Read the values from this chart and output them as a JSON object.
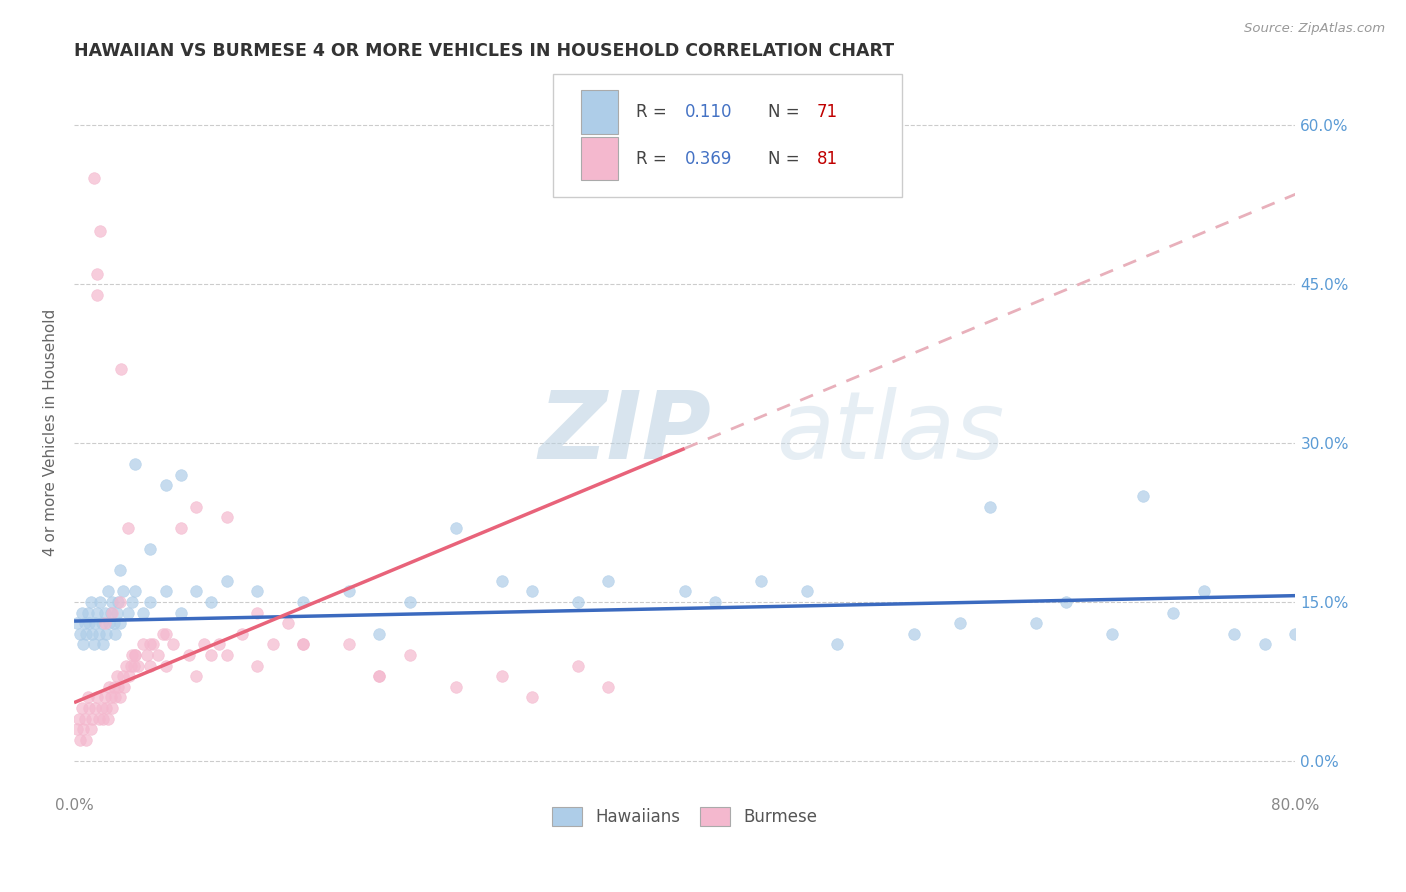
{
  "title": "HAWAIIAN VS BURMESE 4 OR MORE VEHICLES IN HOUSEHOLD CORRELATION CHART",
  "source": "Source: ZipAtlas.com",
  "ylabel": "4 or more Vehicles in Household",
  "ytick_vals": [
    0.0,
    15.0,
    30.0,
    45.0,
    60.0
  ],
  "ytick_labels": [
    "0.0%",
    "15.0%",
    "30.0%",
    "45.0%",
    "60.0%"
  ],
  "xlim": [
    0.0,
    80.0
  ],
  "ylim": [
    -3.0,
    65.0
  ],
  "watermark_zip": "ZIP",
  "watermark_atlas": "atlas",
  "hawaiian_R": "0.110",
  "hawaiian_N": "71",
  "burmese_R": "0.369",
  "burmese_N": "81",
  "hawaiian_color": "#aecde8",
  "burmese_color": "#f4b8ce",
  "hawaiian_line_color": "#3b6abf",
  "burmese_line_color": "#e8637a",
  "burmese_line_dash_color": "#e8b0bb",
  "background_color": "#ffffff",
  "grid_color": "#cccccc",
  "title_color": "#333333",
  "ytick_color": "#5b9bd5",
  "xtick_color": "#888888",
  "legend_R_color": "#4472c4",
  "legend_N_color": "#c00000",
  "legend_text_color": "#444444",
  "hawaiian_x": [
    0.2,
    0.4,
    0.5,
    0.6,
    0.7,
    0.8,
    0.9,
    1.0,
    1.1,
    1.2,
    1.3,
    1.4,
    1.5,
    1.6,
    1.7,
    1.8,
    1.9,
    2.0,
    2.1,
    2.2,
    2.3,
    2.4,
    2.5,
    2.6,
    2.7,
    2.8,
    2.9,
    3.0,
    3.2,
    3.5,
    3.8,
    4.0,
    4.5,
    5.0,
    6.0,
    7.0,
    8.0,
    9.0,
    10.0,
    12.0,
    15.0,
    18.0,
    20.0,
    22.0,
    25.0,
    28.0,
    30.0,
    33.0,
    35.0,
    40.0,
    42.0,
    45.0,
    48.0,
    50.0,
    55.0,
    58.0,
    60.0,
    63.0,
    65.0,
    68.0,
    70.0,
    72.0,
    74.0,
    76.0,
    78.0,
    80.0,
    3.0,
    4.0,
    5.0,
    6.0,
    7.0
  ],
  "hawaiian_y": [
    13.0,
    12.0,
    14.0,
    11.0,
    13.0,
    12.0,
    14.0,
    13.0,
    15.0,
    12.0,
    11.0,
    13.0,
    14.0,
    12.0,
    15.0,
    13.0,
    11.0,
    14.0,
    12.0,
    16.0,
    13.0,
    14.0,
    15.0,
    13.0,
    12.0,
    14.0,
    15.0,
    13.0,
    16.0,
    14.0,
    15.0,
    16.0,
    14.0,
    15.0,
    16.0,
    14.0,
    16.0,
    15.0,
    17.0,
    16.0,
    15.0,
    16.0,
    12.0,
    15.0,
    22.0,
    17.0,
    16.0,
    15.0,
    17.0,
    16.0,
    15.0,
    17.0,
    16.0,
    11.0,
    12.0,
    13.0,
    24.0,
    13.0,
    15.0,
    12.0,
    25.0,
    14.0,
    16.0,
    12.0,
    11.0,
    12.0,
    18.0,
    28.0,
    20.0,
    26.0,
    27.0
  ],
  "burmese_x": [
    0.2,
    0.3,
    0.4,
    0.5,
    0.6,
    0.7,
    0.8,
    0.9,
    1.0,
    1.1,
    1.2,
    1.3,
    1.4,
    1.5,
    1.6,
    1.7,
    1.8,
    1.9,
    2.0,
    2.1,
    2.2,
    2.3,
    2.4,
    2.5,
    2.6,
    2.7,
    2.8,
    2.9,
    3.0,
    3.1,
    3.2,
    3.3,
    3.4,
    3.5,
    3.6,
    3.7,
    3.8,
    3.9,
    4.0,
    4.2,
    4.5,
    4.8,
    5.0,
    5.2,
    5.5,
    5.8,
    6.0,
    6.5,
    7.0,
    7.5,
    8.0,
    8.5,
    9.0,
    9.5,
    10.0,
    11.0,
    12.0,
    13.0,
    14.0,
    15.0,
    18.0,
    20.0,
    22.0,
    25.0,
    28.0,
    30.0,
    33.0,
    35.0,
    1.5,
    1.5,
    2.0,
    2.5,
    3.0,
    4.0,
    5.0,
    6.0,
    8.0,
    10.0,
    12.0,
    15.0,
    20.0
  ],
  "burmese_y": [
    3.0,
    4.0,
    2.0,
    5.0,
    3.0,
    4.0,
    2.0,
    6.0,
    5.0,
    3.0,
    4.0,
    55.0,
    5.0,
    6.0,
    4.0,
    50.0,
    5.0,
    4.0,
    6.0,
    5.0,
    4.0,
    7.0,
    6.0,
    5.0,
    7.0,
    6.0,
    8.0,
    7.0,
    6.0,
    37.0,
    8.0,
    7.0,
    9.0,
    22.0,
    8.0,
    9.0,
    10.0,
    9.0,
    10.0,
    9.0,
    11.0,
    10.0,
    9.0,
    11.0,
    10.0,
    12.0,
    9.0,
    11.0,
    22.0,
    10.0,
    24.0,
    11.0,
    10.0,
    11.0,
    23.0,
    12.0,
    14.0,
    11.0,
    13.0,
    11.0,
    11.0,
    8.0,
    10.0,
    7.0,
    8.0,
    6.0,
    9.0,
    7.0,
    44.0,
    46.0,
    13.0,
    14.0,
    15.0,
    10.0,
    11.0,
    12.0,
    8.0,
    10.0,
    9.0,
    11.0,
    8.0
  ]
}
